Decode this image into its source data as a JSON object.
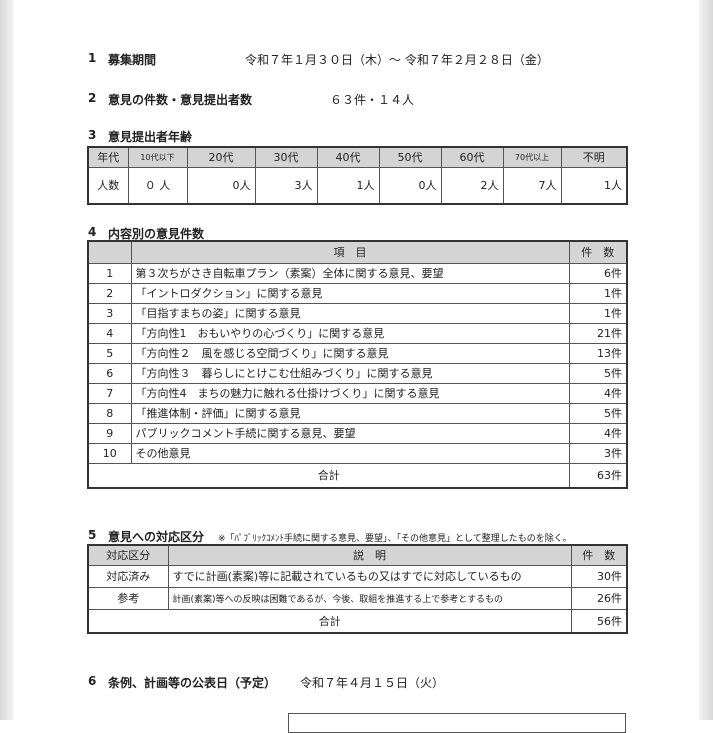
{
  "s1": {
    "num": "1",
    "title": "募集期間",
    "value": "令和７年１月３０日（木）～ 令和７年２月２８日（金）"
  },
  "s2": {
    "num": "2",
    "title": "意見の件数・意見提出者数",
    "value": "６３件・１４人"
  },
  "s3": {
    "num": "3",
    "title": "意見提出者年齢",
    "headers": [
      "年代",
      "10代以下",
      "20代",
      "30代",
      "40代",
      "50代",
      "60代",
      "70代以上",
      "不明"
    ],
    "row": [
      "人数",
      "０ 人",
      "0人",
      "3人",
      "1人",
      "0人",
      "2人",
      "7人",
      "1人"
    ]
  },
  "s4": {
    "num": "4",
    "title": "内容別の意見件数",
    "headers": [
      "",
      "項　目",
      "件　数"
    ],
    "rows": [
      [
        "1",
        "第３次ちがさき自転車プラン（素案）全体に関する意見、要望",
        "6件"
      ],
      [
        "2",
        "「イントロダクション」に関する意見",
        "1件"
      ],
      [
        "3",
        "「目指すまちの姿」に関する意見",
        "1件"
      ],
      [
        "4",
        "「方向性1　おもいやりの心づくり」に関する意見",
        "21件"
      ],
      [
        "5",
        "「方向性２　風を感じる空間づくり」に関する意見",
        "13件"
      ],
      [
        "6",
        "「方向性３　暮らしにとけこむ仕組みづくり」に関する意見",
        "5件"
      ],
      [
        "7",
        "「方向性4　まちの魅力に触れる仕掛けづくり」に関する意見",
        "4件"
      ],
      [
        "8",
        "「推進体制・評価」に関する意見",
        "5件"
      ],
      [
        "9",
        "パブリックコメント手続に関する意見、要望",
        "4件"
      ],
      [
        "10",
        "その他意見",
        "3件"
      ]
    ],
    "total_label": "合計",
    "total": "63件"
  },
  "s5": {
    "num": "5",
    "title": "意見への対応区分",
    "note": "※「ﾊﾟﾌﾞﾘｯｸｺﾒﾝﾄ手続に関する意見、要望」、「その他意見」として整理したものを除く。",
    "headers": [
      "対応区分",
      "説　明",
      "件　数"
    ],
    "rows": [
      [
        "対応済み",
        "すでに計画(素案)等に記載されているもの又はすでに対応しているもの",
        "30件"
      ],
      [
        "参考",
        "計画(素案)等への反映は困難であるが、今後、取組を推進する上で参考とするもの",
        "26件"
      ]
    ],
    "total_label": "合計",
    "total": "56件"
  },
  "s6": {
    "num": "6",
    "title": "条例、計画等の公表日（予定）",
    "value": "令和７年４月１５日（火）"
  }
}
